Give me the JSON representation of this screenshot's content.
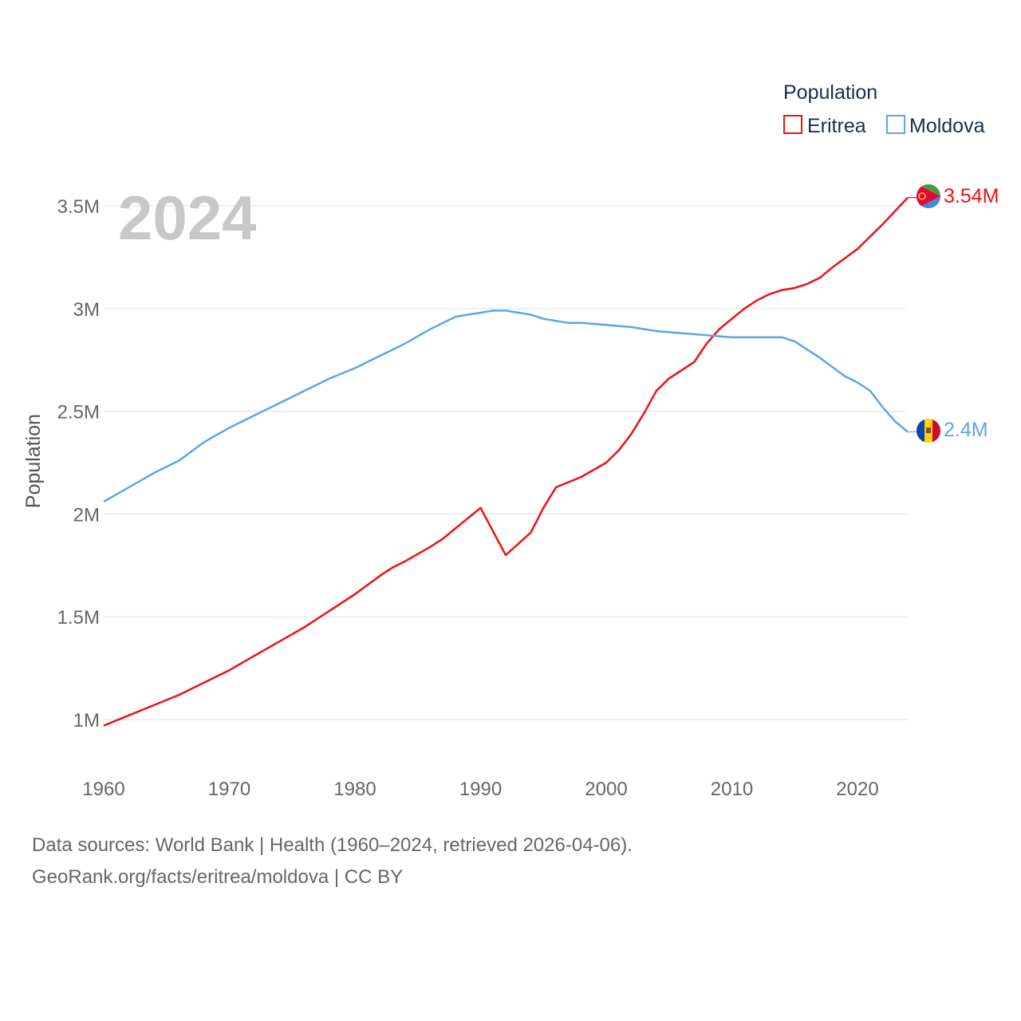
{
  "chart_data": {
    "type": "line",
    "year_label": "2024",
    "ylabel": "Population",
    "legend_title": "Population",
    "xlim": [
      1960,
      2024
    ],
    "ylim": [
      0.8,
      3.7
    ],
    "y_ticks": [
      {
        "value": 1.0,
        "label": "1M"
      },
      {
        "value": 1.5,
        "label": "1.5M"
      },
      {
        "value": 2.0,
        "label": "2M"
      },
      {
        "value": 2.5,
        "label": "2.5M"
      },
      {
        "value": 3.0,
        "label": "3M"
      },
      {
        "value": 3.5,
        "label": "3.5M"
      }
    ],
    "x_ticks": [
      {
        "value": 1960,
        "label": "1960"
      },
      {
        "value": 1970,
        "label": "1970"
      },
      {
        "value": 1980,
        "label": "1980"
      },
      {
        "value": 1990,
        "label": "1990"
      },
      {
        "value": 2000,
        "label": "2000"
      },
      {
        "value": 2010,
        "label": "2010"
      },
      {
        "value": 2020,
        "label": "2020"
      }
    ],
    "series": [
      {
        "name": "Eritrea",
        "color": "#ee1111",
        "end_label": "3.54M",
        "flag": "eritrea-flag-icon",
        "points": [
          [
            1960,
            0.97
          ],
          [
            1962,
            1.02
          ],
          [
            1964,
            1.07
          ],
          [
            1966,
            1.12
          ],
          [
            1968,
            1.18
          ],
          [
            1970,
            1.24
          ],
          [
            1972,
            1.31
          ],
          [
            1974,
            1.38
          ],
          [
            1976,
            1.45
          ],
          [
            1978,
            1.53
          ],
          [
            1980,
            1.61
          ],
          [
            1982,
            1.7
          ],
          [
            1983,
            1.74
          ],
          [
            1984,
            1.77
          ],
          [
            1986,
            1.84
          ],
          [
            1987,
            1.88
          ],
          [
            1988,
            1.93
          ],
          [
            1990,
            2.03
          ],
          [
            1992,
            1.8
          ],
          [
            1994,
            1.91
          ],
          [
            1995,
            2.03
          ],
          [
            1996,
            2.13
          ],
          [
            1998,
            2.18
          ],
          [
            2000,
            2.25
          ],
          [
            2001,
            2.31
          ],
          [
            2002,
            2.39
          ],
          [
            2003,
            2.49
          ],
          [
            2004,
            2.6
          ],
          [
            2005,
            2.66
          ],
          [
            2007,
            2.74
          ],
          [
            2008,
            2.83
          ],
          [
            2009,
            2.9
          ],
          [
            2010,
            2.95
          ],
          [
            2011,
            3.0
          ],
          [
            2012,
            3.04
          ],
          [
            2013,
            3.07
          ],
          [
            2014,
            3.09
          ],
          [
            2015,
            3.1
          ],
          [
            2016,
            3.12
          ],
          [
            2017,
            3.15
          ],
          [
            2018,
            3.2
          ],
          [
            2020,
            3.29
          ],
          [
            2022,
            3.41
          ],
          [
            2024,
            3.54
          ]
        ]
      },
      {
        "name": "Moldova",
        "color": "#5aa7e6",
        "end_label": "2.4M",
        "flag": "moldova-flag-icon",
        "points": [
          [
            1960,
            2.06
          ],
          [
            1962,
            2.13
          ],
          [
            1964,
            2.2
          ],
          [
            1966,
            2.26
          ],
          [
            1968,
            2.35
          ],
          [
            1970,
            2.42
          ],
          [
            1972,
            2.48
          ],
          [
            1974,
            2.54
          ],
          [
            1976,
            2.6
          ],
          [
            1978,
            2.66
          ],
          [
            1980,
            2.71
          ],
          [
            1982,
            2.77
          ],
          [
            1984,
            2.83
          ],
          [
            1986,
            2.9
          ],
          [
            1988,
            2.96
          ],
          [
            1989,
            2.97
          ],
          [
            1990,
            2.98
          ],
          [
            1991,
            2.99
          ],
          [
            1992,
            2.99
          ],
          [
            1994,
            2.97
          ],
          [
            1995,
            2.95
          ],
          [
            1996,
            2.94
          ],
          [
            1997,
            2.93
          ],
          [
            1998,
            2.93
          ],
          [
            2000,
            2.92
          ],
          [
            2002,
            2.91
          ],
          [
            2004,
            2.89
          ],
          [
            2006,
            2.88
          ],
          [
            2008,
            2.87
          ],
          [
            2010,
            2.86
          ],
          [
            2012,
            2.86
          ],
          [
            2014,
            2.86
          ],
          [
            2015,
            2.84
          ],
          [
            2016,
            2.8
          ],
          [
            2017,
            2.76
          ],
          [
            2019,
            2.67
          ],
          [
            2020,
            2.64
          ],
          [
            2021,
            2.6
          ],
          [
            2022,
            2.52
          ],
          [
            2023,
            2.45
          ],
          [
            2024,
            2.4
          ]
        ]
      }
    ]
  },
  "footer": {
    "line1": "Data sources: World Bank | Health (1960–2024, retrieved 2026-04-06).",
    "line2": "GeoRank.org/facts/eritrea/moldova | CC BY"
  }
}
